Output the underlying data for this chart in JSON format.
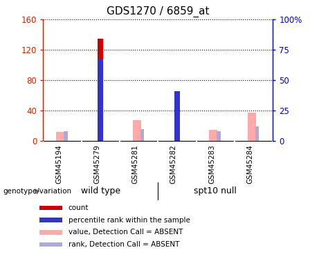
{
  "title": "GDS1270 / 6859_at",
  "categories": [
    "GSM45194",
    "GSM45279",
    "GSM45281",
    "GSM45282",
    "GSM45283",
    "GSM45284"
  ],
  "group1_label": "wild type",
  "group2_label": "spt10 null",
  "genotype_label": "genotype/variation",
  "count_values": [
    0,
    135,
    0,
    62,
    0,
    0
  ],
  "percentile_rank_values": [
    0,
    68,
    0,
    41,
    0,
    0
  ],
  "absent_value_values": [
    12,
    0,
    28,
    0,
    15,
    38
  ],
  "absent_rank_values": [
    8,
    0,
    10,
    0,
    8,
    12
  ],
  "left_ylim": [
    0,
    160
  ],
  "right_ylim": [
    0,
    100
  ],
  "left_yticks": [
    0,
    40,
    80,
    120,
    160
  ],
  "right_yticks": [
    0,
    25,
    50,
    75,
    100
  ],
  "right_yticklabels": [
    "0",
    "25",
    "50",
    "75",
    "100%"
  ],
  "bar_color_count": "#cc0000",
  "bar_color_percentile": "#3333cc",
  "bar_color_absent_value": "#ffaaaa",
  "bar_color_absent_rank": "#aaaadd",
  "group_bg_color": "#66ee66",
  "tick_area_color": "#cccccc",
  "title_fontsize": 11,
  "tick_label_fontsize": 7.5,
  "legend_fontsize": 7.5
}
